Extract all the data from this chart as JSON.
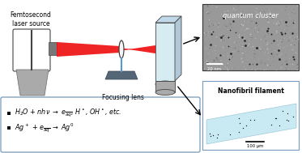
{
  "bg_color": "#ffffff",
  "label_femto": "Femtosecond\nlaser source",
  "label_lens": "Focusing lens",
  "label_qc": "quantum cluster",
  "label_nf": "Nanofibril filament",
  "label_scalebar1": "20 nm",
  "label_scalebar2": "100 μm",
  "red_color": "#ee1111",
  "gray_color": "#999999",
  "light_gray": "#cccccc",
  "dark_gray": "#444444",
  "blue_color": "#5599cc",
  "light_blue": "#aaddee",
  "box_border": "#7799bb",
  "lens_color": "#f5f5f5",
  "cuvette_face": "#d0e8f0",
  "cuvette_side": "#b0c8d8",
  "cuvette_top": "#c0d8e8",
  "em_bg": "#aaaaaa",
  "platform_color": "#556677"
}
